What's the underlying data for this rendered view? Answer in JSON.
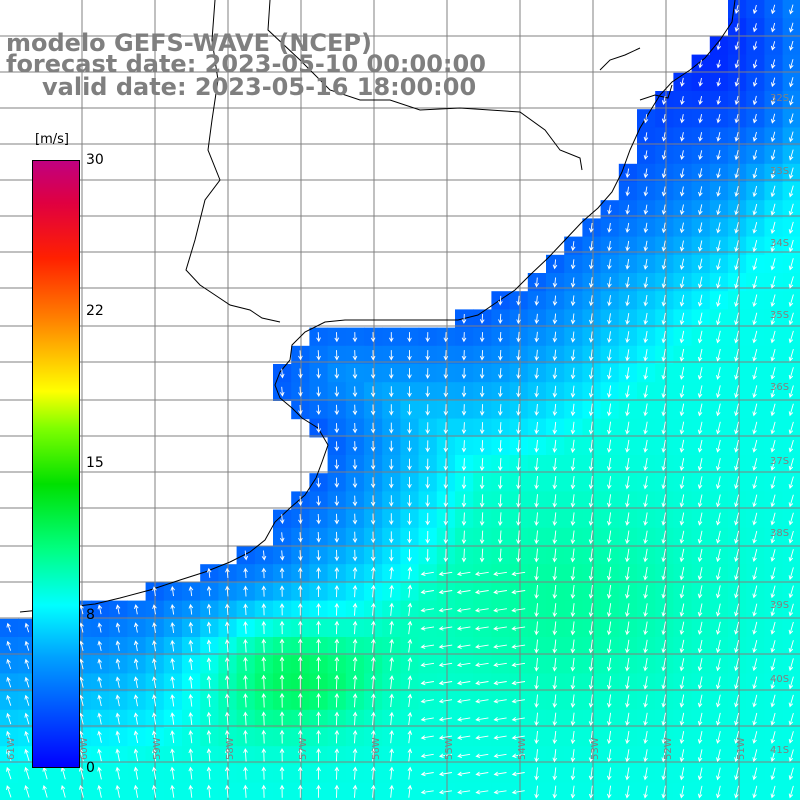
{
  "title": {
    "model": "modelo GEFS-WAVE (NCEP)",
    "forecast": "forecast date: 2023-05-10 00:00:00",
    "valid": "valid date: 2023-05-16 18:00:00"
  },
  "colorbar": {
    "units": "[m/s]",
    "ticks": [
      "30",
      "22",
      "15",
      "8",
      "0"
    ],
    "colors": [
      "#0000ff",
      "#00a0ff",
      "#00ffff",
      "#00e000",
      "#ffff00",
      "#ff2000",
      "#c00080"
    ]
  },
  "lat_labels": [
    "32S",
    "33S",
    "34S",
    "35S",
    "36S",
    "37S",
    "38S",
    "39S",
    "40S",
    "41S"
  ],
  "lon_labels": [
    "61W",
    "60W",
    "59W",
    "58W",
    "57W",
    "56W",
    "55W",
    "54W",
    "53W",
    "52W",
    "51W"
  ],
  "colors": {
    "land": "#ffffff",
    "grid": "#808080",
    "coast": "#000000",
    "arrow": "#ffffff",
    "title": "#7f7f7f"
  }
}
